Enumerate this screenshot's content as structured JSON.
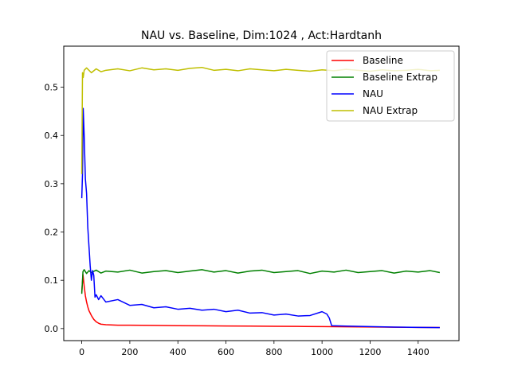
{
  "chart_data": {
    "type": "line",
    "title": "NAU vs. Baseline, Dim:1024 , Act:Hardtanh",
    "xlabel": "",
    "ylabel": "",
    "xlim": [
      -75,
      1570
    ],
    "ylim": [
      -0.025,
      0.585
    ],
    "xticks": [
      0,
      200,
      400,
      600,
      800,
      1000,
      1200,
      1400
    ],
    "yticks": [
      0.0,
      0.1,
      0.2,
      0.3,
      0.4,
      0.5
    ],
    "xtick_labels": [
      "0",
      "200",
      "400",
      "600",
      "800",
      "1000",
      "1200",
      "1400"
    ],
    "ytick_labels": [
      "0.0",
      "0.1",
      "0.2",
      "0.3",
      "0.4",
      "0.5"
    ],
    "grid": false,
    "legend_position": "top-right",
    "series": [
      {
        "name": "Baseline",
        "color": "#ff0000",
        "x": [
          0,
          5,
          10,
          15,
          20,
          25,
          30,
          40,
          50,
          60,
          70,
          80,
          100,
          150,
          200,
          300,
          400,
          500,
          600,
          700,
          800,
          900,
          1000,
          1100,
          1200,
          1300,
          1400,
          1490
        ],
        "y": [
          0.075,
          0.112,
          0.088,
          0.068,
          0.055,
          0.045,
          0.037,
          0.027,
          0.019,
          0.014,
          0.011,
          0.009,
          0.008,
          0.007,
          0.007,
          0.0065,
          0.006,
          0.0057,
          0.0053,
          0.005,
          0.0047,
          0.0044,
          0.004,
          0.0036,
          0.0032,
          0.0028,
          0.0025,
          0.0022
        ]
      },
      {
        "name": "Baseline Extrap",
        "color": "#008000",
        "x": [
          0,
          5,
          10,
          20,
          30,
          40,
          60,
          80,
          100,
          150,
          200,
          250,
          300,
          350,
          400,
          450,
          500,
          550,
          600,
          650,
          700,
          750,
          800,
          850,
          900,
          950,
          1000,
          1050,
          1100,
          1150,
          1200,
          1250,
          1300,
          1350,
          1400,
          1450,
          1490
        ],
        "y": [
          0.072,
          0.118,
          0.122,
          0.114,
          0.12,
          0.116,
          0.121,
          0.115,
          0.119,
          0.117,
          0.121,
          0.115,
          0.118,
          0.12,
          0.116,
          0.119,
          0.122,
          0.117,
          0.12,
          0.115,
          0.119,
          0.121,
          0.116,
          0.118,
          0.12,
          0.114,
          0.119,
          0.117,
          0.121,
          0.116,
          0.118,
          0.12,
          0.115,
          0.119,
          0.117,
          0.12,
          0.116
        ]
      },
      {
        "name": "NAU",
        "color": "#0000ff",
        "x": [
          0,
          3,
          6,
          10,
          15,
          20,
          25,
          30,
          35,
          40,
          45,
          50,
          55,
          60,
          70,
          80,
          100,
          150,
          200,
          250,
          300,
          350,
          400,
          450,
          500,
          550,
          600,
          650,
          700,
          750,
          800,
          850,
          900,
          950,
          1000,
          1020,
          1030,
          1040,
          1100,
          1200,
          1300,
          1400,
          1490
        ],
        "y": [
          0.27,
          0.32,
          0.456,
          0.4,
          0.31,
          0.28,
          0.21,
          0.17,
          0.13,
          0.1,
          0.12,
          0.11,
          0.065,
          0.07,
          0.06,
          0.068,
          0.055,
          0.06,
          0.048,
          0.05,
          0.043,
          0.045,
          0.04,
          0.042,
          0.038,
          0.04,
          0.035,
          0.038,
          0.032,
          0.033,
          0.028,
          0.03,
          0.026,
          0.027,
          0.035,
          0.03,
          0.022,
          0.006,
          0.005,
          0.004,
          0.003,
          0.0025,
          0.002
        ]
      },
      {
        "name": "NAU Extrap",
        "color": "#bfbf00",
        "x": [
          0,
          3,
          6,
          10,
          20,
          40,
          60,
          80,
          100,
          150,
          200,
          250,
          300,
          350,
          400,
          450,
          500,
          550,
          600,
          650,
          700,
          750,
          800,
          850,
          900,
          950,
          1000,
          1050,
          1100,
          1150,
          1200,
          1250,
          1300,
          1350,
          1400,
          1450,
          1490
        ],
        "y": [
          0.32,
          0.53,
          0.52,
          0.535,
          0.54,
          0.53,
          0.538,
          0.532,
          0.535,
          0.538,
          0.534,
          0.54,
          0.536,
          0.538,
          0.535,
          0.539,
          0.541,
          0.535,
          0.537,
          0.534,
          0.538,
          0.536,
          0.534,
          0.537,
          0.535,
          0.533,
          0.536,
          0.534,
          0.537,
          0.535,
          0.533,
          0.536,
          0.534,
          0.535,
          0.537,
          0.534,
          0.535
        ]
      }
    ]
  }
}
